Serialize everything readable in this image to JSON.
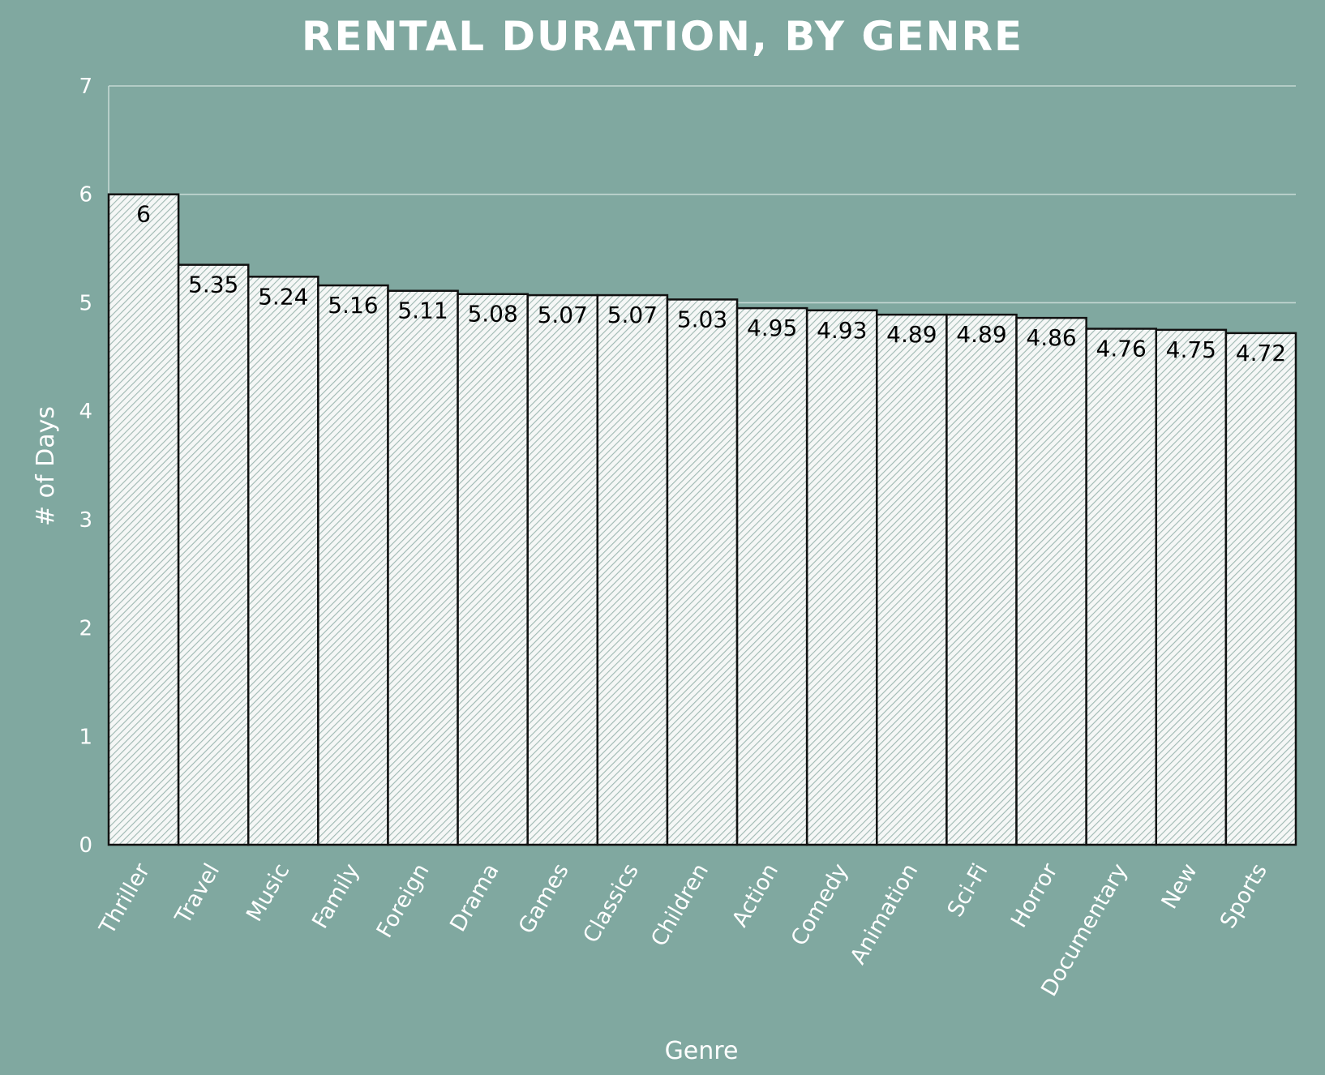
{
  "chart_data": {
    "type": "bar",
    "title": "RENTAL DURATION, BY GENRE",
    "xlabel": "Genre",
    "ylabel": "# of Days",
    "ylim": [
      0,
      7
    ],
    "yticks": [
      0,
      1,
      2,
      3,
      4,
      5,
      6,
      7
    ],
    "grid": true,
    "categories": [
      "Thriller",
      "Travel",
      "Music",
      "Family",
      "Foreign",
      "Drama",
      "Games",
      "Classics",
      "Children",
      "Action",
      "Comedy",
      "Animation",
      "Sci-Fi",
      "Horror",
      "Documentary",
      "New",
      "Sports"
    ],
    "values": [
      6,
      5.35,
      5.24,
      5.16,
      5.11,
      5.08,
      5.07,
      5.07,
      5.03,
      4.95,
      4.93,
      4.89,
      4.89,
      4.86,
      4.76,
      4.75,
      4.72
    ],
    "data_labels": [
      "6",
      "5.35",
      "5.24",
      "5.16",
      "5.11",
      "5.08",
      "5.07",
      "5.07",
      "5.03",
      "4.95",
      "4.93",
      "4.89",
      "4.89",
      "4.86",
      "4.76",
      "4.75",
      "4.72"
    ],
    "colors": {
      "background": "#80a8a0",
      "bar_fill": "#f5f7f6",
      "bar_hatch": "#9fb8b2",
      "bar_stroke": "#111111",
      "gridline": "#c4d8d3",
      "text": "#ffffff",
      "data_label": "#000000"
    }
  }
}
